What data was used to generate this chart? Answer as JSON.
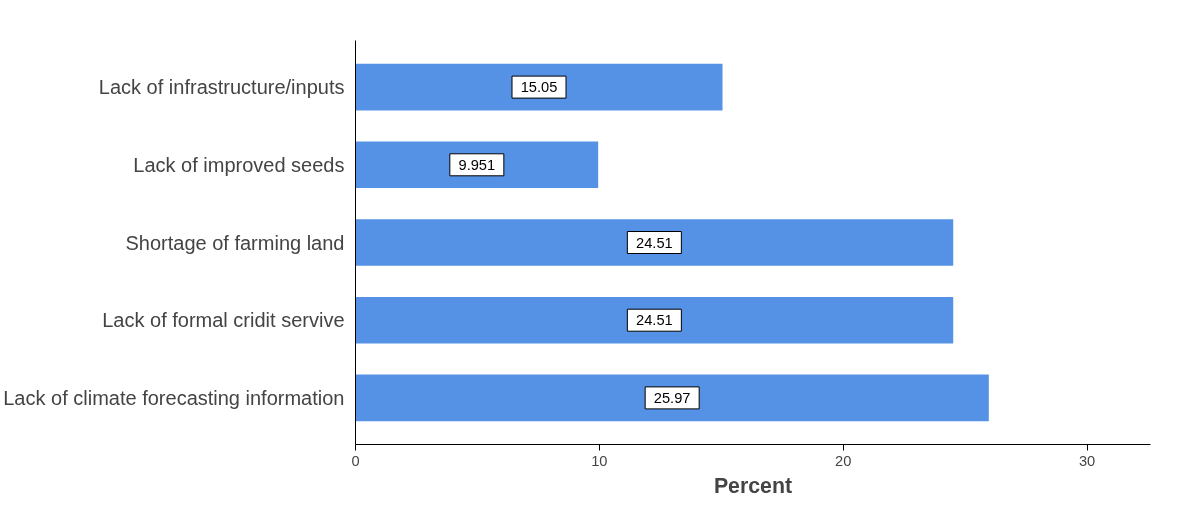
{
  "chart_data": {
    "type": "bar",
    "orientation": "horizontal",
    "xlabel": "Percent",
    "categories": [
      "Lack of infrastructure/inputs",
      "Lack of improved seeds",
      "Shortage of farming land",
      "Lack of formal cridit servive",
      "Lack of climate forecasting information"
    ],
    "values": [
      15.05,
      9.951,
      24.51,
      24.51,
      25.97
    ],
    "color": "#5592e6",
    "xlim": [
      0,
      32.6
    ],
    "xticks": [
      0,
      10,
      20,
      30
    ],
    "data_labels": true,
    "grid": false
  }
}
